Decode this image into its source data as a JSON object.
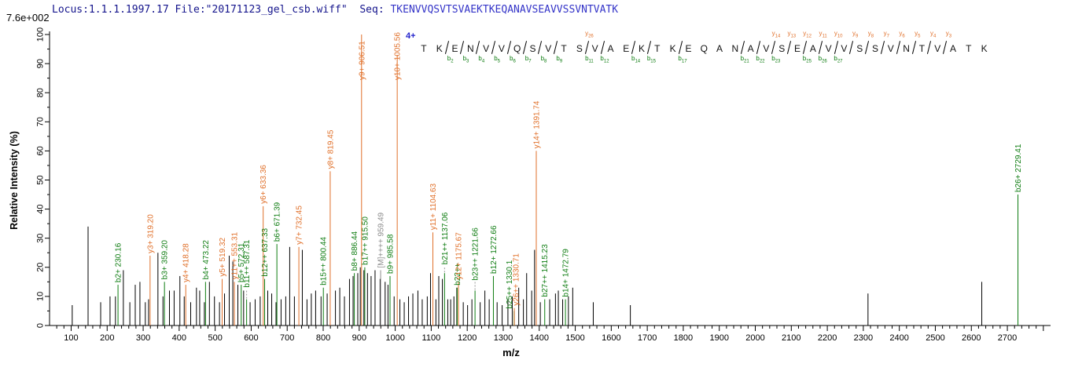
{
  "header": {
    "intensity_label": "7.6e+002",
    "locus_file": "Locus:1.1.1.1997.17 File:\"20171123_gel_csb.wiff\"",
    "seq_label": "  Seq: ",
    "sequence": "TKENVVQSVTSVAEKTKEQANAVSEAVVSSVNTVATK"
  },
  "colors": {
    "y_ion": "#E0702A",
    "b_ion": "#0E7C11",
    "precursor": "#8C8C8C",
    "axis": "#000000",
    "header_navy": "#14148C",
    "sequence_blue": "#3434C8",
    "charge_blue": "#2222CC"
  },
  "sequence_annotation": {
    "charge_label": "4+",
    "residues": [
      {
        "aa": "T"
      },
      {
        "aa": "K",
        "b": 2
      },
      {
        "aa": "E",
        "b": 3
      },
      {
        "aa": "N",
        "b": 4
      },
      {
        "aa": "V",
        "b": 5
      },
      {
        "aa": "V",
        "b": 6
      },
      {
        "aa": "Q",
        "b": 7
      },
      {
        "aa": "S",
        "b": 8
      },
      {
        "aa": "V",
        "b": 9
      },
      {
        "aa": "T"
      },
      {
        "aa": "S",
        "b": 11,
        "y": 26
      },
      {
        "aa": "V",
        "b": 12
      },
      {
        "aa": "A"
      },
      {
        "aa": "E",
        "b": 14
      },
      {
        "aa": "K",
        "b": 15
      },
      {
        "aa": "T"
      },
      {
        "aa": "K",
        "b": 17
      },
      {
        "aa": "E"
      },
      {
        "aa": "Q"
      },
      {
        "aa": "A"
      },
      {
        "aa": "N",
        "b": 21
      },
      {
        "aa": "A",
        "b": 22
      },
      {
        "aa": "V",
        "b": 23,
        "y": 14
      },
      {
        "aa": "S",
        "y": 13
      },
      {
        "aa": "E",
        "b": 25,
        "y": 12
      },
      {
        "aa": "A",
        "b": 26,
        "y": 11
      },
      {
        "aa": "V",
        "b": 27,
        "y": 10
      },
      {
        "aa": "V",
        "y": 9
      },
      {
        "aa": "S",
        "y": 8
      },
      {
        "aa": "S",
        "y": 7
      },
      {
        "aa": "V",
        "y": 6
      },
      {
        "aa": "N",
        "y": 5
      },
      {
        "aa": "T",
        "y": 4
      },
      {
        "aa": "V",
        "y": 3
      },
      {
        "aa": "A"
      },
      {
        "aa": "T"
      },
      {
        "aa": "K"
      }
    ]
  },
  "chart_data": {
    "type": "bar",
    "subtype": "ms2-fragmentation-spectrum",
    "title": "",
    "xlabel": "m/z",
    "ylabel": "Relative  Intensity (%)",
    "xlim": [
      40,
      2820
    ],
    "ylim": [
      0,
      100
    ],
    "x_label_min": 100,
    "x_label_max": 2700,
    "x_tick_step": 100,
    "x_minor_step": 20,
    "y_tick_step": 10,
    "y_minor_step": 5,
    "max_intensity_label": "7.6e+002",
    "labeled_peaks": [
      {
        "mz": 230.16,
        "pct": 14,
        "ion": "b",
        "label": "b2+ 230.16"
      },
      {
        "mz": 319.2,
        "pct": 24,
        "ion": "y",
        "label": "y3+ 319.20"
      },
      {
        "mz": 359.2,
        "pct": 15,
        "ion": "b",
        "label": "b3+ 359.20"
      },
      {
        "mz": 418.28,
        "pct": 14,
        "ion": "y",
        "label": "y4+ 418.28"
      },
      {
        "mz": 473.22,
        "pct": 15,
        "ion": "b",
        "label": "b4+ 473.22"
      },
      {
        "mz": 519.32,
        "pct": 16,
        "ion": "y",
        "label": "y5+ 519.32"
      },
      {
        "mz": 553.31,
        "pct": 15,
        "ion": "y",
        "label": "y11++ 553.31"
      },
      {
        "mz": 572.31,
        "pct": 14,
        "ion": "b",
        "label": "b5+ 572.31"
      },
      {
        "mz": 587.31,
        "pct": 9,
        "ion": "b",
        "label": "b11++ 587.31",
        "lift": 12
      },
      {
        "mz": 633.36,
        "pct": 41,
        "ion": "y",
        "label": "y6+ 633.36"
      },
      {
        "mz": 637.33,
        "pct": 16,
        "ion": "b",
        "label": "b12++ 637.33"
      },
      {
        "mz": 671.39,
        "pct": 28,
        "ion": "b",
        "label": "b6+ 671.39"
      },
      {
        "mz": 732.45,
        "pct": 27,
        "ion": "y",
        "label": "y7+ 732.45"
      },
      {
        "mz": 800.44,
        "pct": 13,
        "ion": "b",
        "label": "b15++ 800.44"
      },
      {
        "mz": 819.45,
        "pct": 53,
        "ion": "y",
        "label": "y8+ 819.45"
      },
      {
        "mz": 886.44,
        "pct": 18,
        "ion": "b",
        "label": "b8+ 886.44"
      },
      {
        "mz": 906.51,
        "pct": 100,
        "ion": "y",
        "label": "y9+ 906.51"
      },
      {
        "mz": 915.5,
        "pct": 20,
        "ion": "b",
        "label": "b17++ 915.50"
      },
      {
        "mz": 959.49,
        "pct": 19,
        "ion": "M",
        "label": "[M]++++ 959.49"
      },
      {
        "mz": 985.58,
        "pct": 17,
        "ion": "b",
        "label": "b9+ 985.58"
      },
      {
        "mz": 1005.56,
        "pct": 93,
        "ion": "y",
        "label": "y10+ 1005.56"
      },
      {
        "mz": 1104.63,
        "pct": 32,
        "ion": "y",
        "label": "y11+ 1104.63"
      },
      {
        "mz": 1137.06,
        "pct": 18,
        "ion": "b",
        "label": "b21++ 1137.06",
        "lift": 8
      },
      {
        "mz": 1172.1,
        "pct": 13,
        "ion": "b",
        "label": "b22++"
      },
      {
        "mz": 1175.67,
        "pct": 15,
        "ion": "y",
        "label": "y12+ 1175.67"
      },
      {
        "mz": 1221.66,
        "pct": 12,
        "ion": "b",
        "label": "b23++ 1221.66",
        "lift": 10
      },
      {
        "mz": 1272.66,
        "pct": 17,
        "ion": "b",
        "label": "b12+ 1272.66"
      },
      {
        "mz": 1330.1,
        "pct": 5,
        "ion": "b",
        "label": "b25++ 1330.1",
        "dx": -6
      },
      {
        "mz": 1330.71,
        "pct": 6,
        "ion": "y",
        "label": "y26++ 1330.71",
        "dx": 2
      },
      {
        "mz": 1391.74,
        "pct": 60,
        "ion": "y",
        "label": "y14+ 1391.74"
      },
      {
        "mz": 1415.23,
        "pct": 9,
        "ion": "b",
        "label": "b27++ 1415.23"
      },
      {
        "mz": 1472.79,
        "pct": 9,
        "ion": "b",
        "label": "b14+ 1472.79"
      },
      {
        "mz": 2729.41,
        "pct": 45,
        "ion": "b",
        "label": "b26+ 2729.41"
      }
    ],
    "unlabeled_peaks": [
      [
        103,
        7
      ],
      [
        147,
        34
      ],
      [
        182,
        8
      ],
      [
        208,
        10
      ],
      [
        223,
        10
      ],
      [
        245,
        19
      ],
      [
        263,
        8
      ],
      [
        278,
        14
      ],
      [
        291,
        15
      ],
      [
        306,
        8
      ],
      [
        315,
        9
      ],
      [
        341,
        25
      ],
      [
        355,
        10
      ],
      [
        373,
        12
      ],
      [
        386,
        12
      ],
      [
        402,
        17
      ],
      [
        414,
        10
      ],
      [
        432,
        8
      ],
      [
        448,
        13
      ],
      [
        457,
        12
      ],
      [
        470,
        8
      ],
      [
        484,
        15
      ],
      [
        498,
        10
      ],
      [
        512,
        8
      ],
      [
        526,
        11
      ],
      [
        539,
        24
      ],
      [
        549,
        22
      ],
      [
        563,
        14
      ],
      [
        579,
        12
      ],
      [
        597,
        8
      ],
      [
        611,
        9
      ],
      [
        625,
        10
      ],
      [
        646,
        12
      ],
      [
        657,
        11
      ],
      [
        669,
        8
      ],
      [
        683,
        9
      ],
      [
        696,
        10
      ],
      [
        707,
        27
      ],
      [
        720,
        10
      ],
      [
        742,
        26
      ],
      [
        755,
        9
      ],
      [
        767,
        11
      ],
      [
        779,
        12
      ],
      [
        794,
        10
      ],
      [
        811,
        11
      ],
      [
        834,
        12
      ],
      [
        846,
        13
      ],
      [
        859,
        10
      ],
      [
        873,
        16
      ],
      [
        883,
        17
      ],
      [
        896,
        18
      ],
      [
        903,
        20
      ],
      [
        913,
        19
      ],
      [
        923,
        18
      ],
      [
        933,
        17
      ],
      [
        944,
        19
      ],
      [
        958,
        16
      ],
      [
        972,
        15
      ],
      [
        980,
        14
      ],
      [
        997,
        10
      ],
      [
        1013,
        9
      ],
      [
        1025,
        8
      ],
      [
        1037,
        10
      ],
      [
        1049,
        11
      ],
      [
        1063,
        12
      ],
      [
        1075,
        9
      ],
      [
        1089,
        10
      ],
      [
        1098,
        18
      ],
      [
        1113,
        9
      ],
      [
        1121,
        17
      ],
      [
        1131,
        16
      ],
      [
        1146,
        9
      ],
      [
        1154,
        9
      ],
      [
        1163,
        10
      ],
      [
        1171,
        13
      ],
      [
        1189,
        8
      ],
      [
        1201,
        7
      ],
      [
        1213,
        9
      ],
      [
        1236,
        8
      ],
      [
        1249,
        12
      ],
      [
        1261,
        9
      ],
      [
        1283,
        8
      ],
      [
        1297,
        7
      ],
      [
        1313,
        9
      ],
      [
        1325,
        10
      ],
      [
        1343,
        13
      ],
      [
        1356,
        9
      ],
      [
        1365,
        18
      ],
      [
        1379,
        12
      ],
      [
        1387,
        26
      ],
      [
        1403,
        8
      ],
      [
        1429,
        9
      ],
      [
        1445,
        11
      ],
      [
        1453,
        12
      ],
      [
        1465,
        9
      ],
      [
        1481,
        10
      ],
      [
        1493,
        13
      ],
      [
        1550,
        8
      ],
      [
        1653,
        7
      ],
      [
        2313,
        11
      ],
      [
        2629,
        15
      ]
    ]
  }
}
